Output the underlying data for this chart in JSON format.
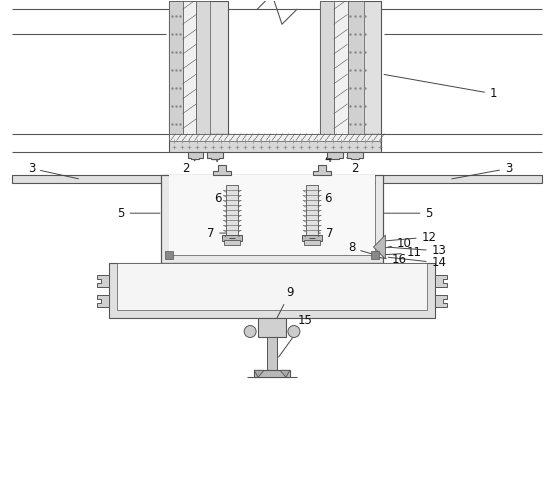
{
  "bg_color": "#ffffff",
  "lc": "#555555",
  "lw": 0.8,
  "figsize": [
    5.54,
    4.93
  ],
  "dpi": 100
}
